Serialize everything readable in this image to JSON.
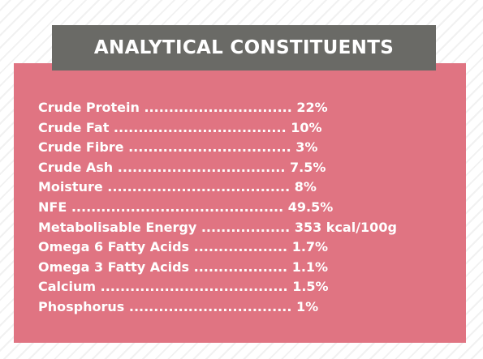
{
  "title": "ANALYTICAL CONSTITUENTS",
  "colors": {
    "panel": "#e07482",
    "banner": "#6a6a66",
    "text": "#ffffff"
  },
  "constituents": [
    {
      "label": "Crude Protein",
      "dots": "..............................",
      "value": "22%"
    },
    {
      "label": "Crude Fat",
      "dots": "...................................",
      "value": "10%"
    },
    {
      "label": "Crude Fibre",
      "dots": ".................................",
      "value": "3%"
    },
    {
      "label": "Crude Ash",
      "dots": "..................................",
      "value": "7.5%"
    },
    {
      "label": "Moisture",
      "dots": ".....................................",
      "value": "8%"
    },
    {
      "label": "NFE",
      "dots": "...........................................",
      "value": "49.5%"
    },
    {
      "label": "Metabolisable Energy",
      "dots": "..................",
      "value": "353 kcal/100g"
    },
    {
      "label": "Omega 6 Fatty Acids",
      "dots": "...................",
      "value": "1.7%"
    },
    {
      "label": "Omega 3 Fatty Acids",
      "dots": "...................",
      "value": "1.1%"
    },
    {
      "label": "Calcium",
      "dots": "......................................",
      "value": "1.5%"
    },
    {
      "label": "Phosphorus",
      "dots": ".................................",
      "value": "1%"
    }
  ]
}
